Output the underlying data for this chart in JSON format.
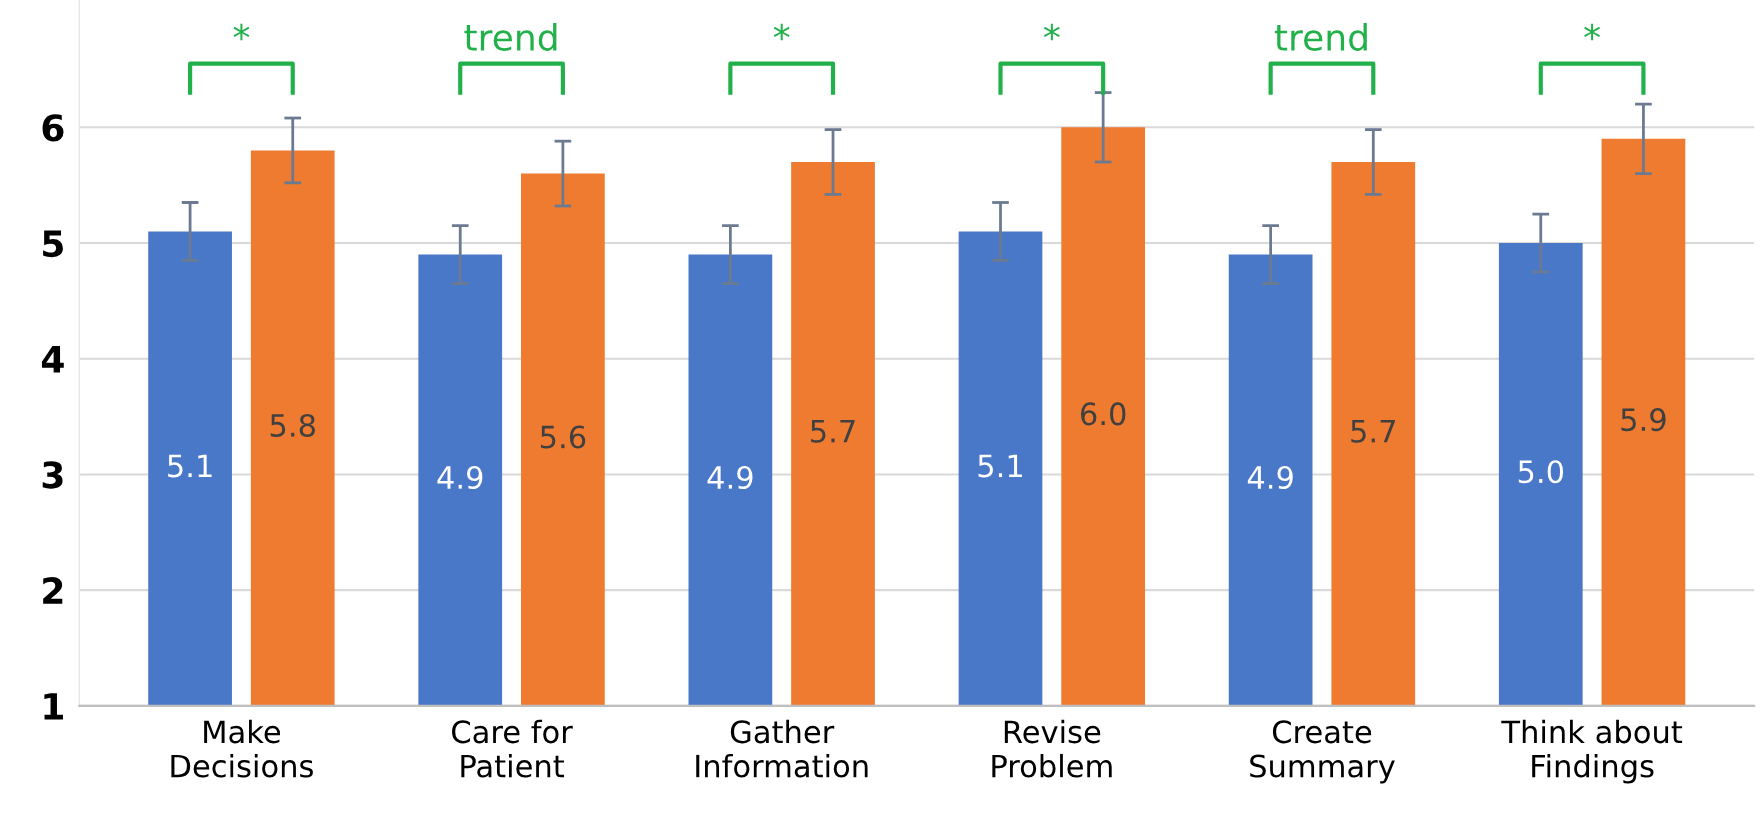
{
  "chart_data": {
    "type": "bar",
    "categories": [
      "Make\nDecisions",
      "Care for\nPatient",
      "Gather\nInformation",
      "Revise\nProblem",
      "Create\nSummary",
      "Think about\nFindings"
    ],
    "series": [
      {
        "color": "#4a78c8",
        "values": [
          5.1,
          4.9,
          4.9,
          5.1,
          4.9,
          5.0
        ],
        "errors": [
          0.25,
          0.25,
          0.25,
          0.25,
          0.25,
          0.25
        ],
        "value_labels": [
          "5.1",
          "4.9",
          "4.9",
          "5.1",
          "4.9",
          "5.0"
        ]
      },
      {
        "color": "#ee7b30",
        "values": [
          5.8,
          5.6,
          5.7,
          6.0,
          5.7,
          5.9
        ],
        "errors": [
          0.28,
          0.28,
          0.28,
          0.3,
          0.28,
          0.3
        ],
        "value_labels": [
          "5.8",
          "5.6",
          "5.7",
          "6.0",
          "5.7",
          "5.9"
        ]
      }
    ],
    "ylim": [
      1,
      7.1
    ],
    "yticks": [
      1,
      2,
      3,
      4,
      5,
      6
    ],
    "grid": "y",
    "legend": false,
    "annotations": [
      "*",
      "trend",
      "*",
      "*",
      "trend",
      "*"
    ]
  }
}
